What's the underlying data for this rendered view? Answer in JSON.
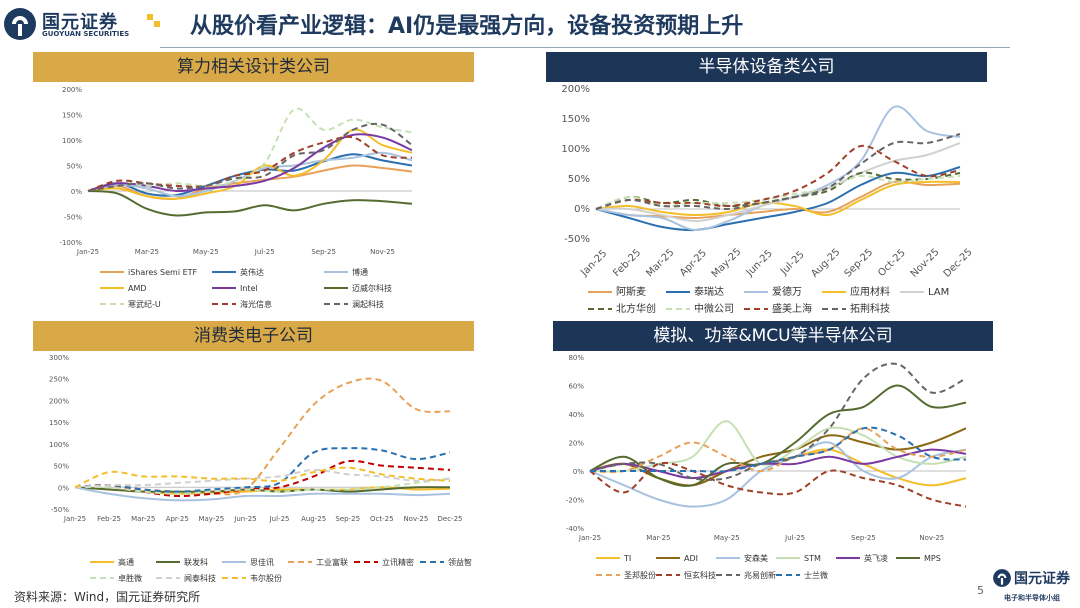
{
  "header": {
    "logo_cn": "国元证券",
    "logo_en": "GUOYUAN SECURITIES",
    "title": "从股价看产业逻辑：AI仍是最强方向，设备投资预期上升"
  },
  "footer": {
    "source": "资料来源：Wind，国元证券研究所",
    "page": "5",
    "logo_cn": "国元证券",
    "team": "电子和半导体小组"
  },
  "chart_data": [
    {
      "id": "tl",
      "type": "line",
      "title": "算力相关设计类公司",
      "x": [
        "Jan-25",
        "Feb-25",
        "Mar-25",
        "Apr-25",
        "May-25",
        "Jun-25",
        "Jul-25",
        "Aug-25",
        "Sep-25",
        "Oct-25",
        "Nov-25",
        "Dec-25"
      ],
      "x_ticks": [
        "Jan-25",
        "Mar-25",
        "May-25",
        "Jul-25",
        "Sep-25",
        "Nov-25"
      ],
      "y_ticks": [
        "-100%",
        "-50%",
        "0%",
        "50%",
        "100%",
        "150%",
        "200%"
      ],
      "ylim": [
        -100,
        200
      ],
      "series": [
        {
          "name": "iShares Semi ETF",
          "color": "#e8a15a",
          "dash": false,
          "values": [
            0,
            10,
            -10,
            -15,
            5,
            15,
            22,
            28,
            40,
            50,
            45,
            38
          ]
        },
        {
          "name": "英伟达",
          "color": "#2a6fb0",
          "dash": false,
          "values": [
            0,
            15,
            -5,
            -8,
            10,
            30,
            42,
            40,
            58,
            72,
            60,
            50
          ]
        },
        {
          "name": "博通",
          "color": "#a8c2e0",
          "dash": false,
          "values": [
            0,
            12,
            5,
            -10,
            0,
            20,
            45,
            50,
            60,
            65,
            75,
            60
          ]
        },
        {
          "name": "AMD",
          "color": "#f4be2a",
          "dash": false,
          "values": [
            0,
            5,
            -10,
            -15,
            -5,
            10,
            50,
            30,
            60,
            120,
            90,
            75
          ]
        },
        {
          "name": "Intel",
          "color": "#7b3aa3",
          "dash": false,
          "values": [
            0,
            15,
            10,
            0,
            5,
            10,
            20,
            45,
            85,
            110,
            105,
            80
          ]
        },
        {
          "name": "迈威尔科技",
          "color": "#556b2f",
          "dash": false,
          "values": [
            0,
            -5,
            -35,
            -48,
            -42,
            -40,
            -28,
            -38,
            -25,
            -18,
            -20,
            -25
          ]
        },
        {
          "name": "寒武纪-U",
          "color": "#c6e0b4",
          "dash": true,
          "values": [
            0,
            20,
            10,
            15,
            10,
            20,
            55,
            160,
            120,
            140,
            125,
            115
          ]
        },
        {
          "name": "海光信息",
          "color": "#a0402a",
          "dash": true,
          "values": [
            0,
            20,
            15,
            10,
            10,
            30,
            40,
            75,
            95,
            105,
            70,
            65
          ]
        },
        {
          "name": "澜起科技",
          "color": "#666666",
          "dash": true,
          "values": [
            0,
            10,
            15,
            5,
            10,
            25,
            30,
            70,
            80,
            120,
            130,
            90
          ]
        }
      ]
    },
    {
      "id": "tr",
      "type": "line",
      "title": "半导体设备类公司",
      "x": [
        "Jan-25",
        "Feb-25",
        "Mar-25",
        "Apr-25",
        "May-25",
        "Jun-25",
        "Jul-25",
        "Aug-25",
        "Sep-25",
        "Oct-25",
        "Nov-25",
        "Dec-25"
      ],
      "x_ticks": [
        "Jan-25",
        "Feb-25",
        "Mar-25",
        "Apr-25",
        "May-25",
        "Jun-25",
        "Jul-25",
        "Aug-25",
        "Sep-25",
        "Oct-25",
        "Nov-25",
        "Dec-25"
      ],
      "y_ticks": [
        "-50%",
        "0%",
        "50%",
        "100%",
        "150%",
        "200%"
      ],
      "ylim": [
        -50,
        200
      ],
      "series": [
        {
          "name": "阿斯麦",
          "color": "#e8a15a",
          "dash": false,
          "values": [
            0,
            -10,
            -12,
            -15,
            -10,
            -5,
            0,
            -5,
            20,
            45,
            40,
            42
          ]
        },
        {
          "name": "泰瑞达",
          "color": "#2a6fb0",
          "dash": false,
          "values": [
            0,
            -15,
            -30,
            -35,
            -25,
            -15,
            -5,
            10,
            40,
            60,
            55,
            70
          ]
        },
        {
          "name": "爱德万",
          "color": "#a8c2e0",
          "dash": false,
          "values": [
            0,
            -10,
            -15,
            -35,
            -20,
            5,
            20,
            40,
            80,
            170,
            130,
            120
          ]
        },
        {
          "name": "应用材料",
          "color": "#f4be2a",
          "dash": false,
          "values": [
            0,
            5,
            -5,
            -10,
            -5,
            10,
            5,
            -10,
            15,
            40,
            45,
            45
          ]
        },
        {
          "name": "LAM",
          "color": "#d0d0d0",
          "dash": false,
          "values": [
            0,
            0,
            -10,
            -20,
            -10,
            5,
            20,
            35,
            60,
            80,
            90,
            110
          ]
        },
        {
          "name": "北方华创",
          "color": "#556b2f",
          "dash": true,
          "values": [
            0,
            20,
            10,
            15,
            5,
            10,
            20,
            30,
            60,
            50,
            50,
            60
          ]
        },
        {
          "name": "中微公司",
          "color": "#c6e0b4",
          "dash": true,
          "values": [
            0,
            20,
            5,
            10,
            10,
            15,
            25,
            35,
            55,
            45,
            50,
            55
          ]
        },
        {
          "name": "盛美上海",
          "color": "#a0402a",
          "dash": true,
          "values": [
            0,
            15,
            10,
            10,
            5,
            15,
            30,
            60,
            105,
            80,
            55,
            65
          ]
        },
        {
          "name": "拓荆科技",
          "color": "#666666",
          "dash": true,
          "values": [
            0,
            15,
            5,
            5,
            0,
            10,
            20,
            35,
            75,
            110,
            110,
            125
          ]
        }
      ]
    },
    {
      "id": "bl",
      "type": "line",
      "title": "消费类电子公司",
      "x": [
        "Jan-25",
        "Feb-25",
        "Mar-25",
        "Apr-25",
        "May-25",
        "Jun-25",
        "Jul-25",
        "Aug-25",
        "Sep-25",
        "Oct-25",
        "Nov-25",
        "Dec-25"
      ],
      "x_ticks": [
        "Jan-25",
        "Feb-25",
        "Mar-25",
        "Apr-25",
        "May-25",
        "Jun-25",
        "Jul-25",
        "Aug-25",
        "Sep-25",
        "Oct-25",
        "Nov-25",
        "Dec-25"
      ],
      "y_ticks": [
        "-50%",
        "0%",
        "50%",
        "100%",
        "150%",
        "200%",
        "250%",
        "300%"
      ],
      "ylim": [
        -50,
        300
      ],
      "series": [
        {
          "name": "高通",
          "color": "#f4be2a",
          "dash": false,
          "values": [
            0,
            -5,
            -10,
            -15,
            -12,
            -10,
            -5,
            -5,
            -5,
            0,
            -5,
            -3
          ]
        },
        {
          "name": "联发科",
          "color": "#556b2f",
          "dash": false,
          "values": [
            0,
            -5,
            -10,
            -10,
            -10,
            -5,
            -10,
            -5,
            -10,
            -5,
            0,
            0
          ]
        },
        {
          "name": "思佳讯",
          "color": "#a8c2e0",
          "dash": false,
          "values": [
            0,
            -15,
            -25,
            -30,
            -28,
            -20,
            -20,
            -15,
            -15,
            -15,
            -18,
            -15
          ]
        },
        {
          "name": "工业富联",
          "color": "#e8a15a",
          "dash": true,
          "values": [
            0,
            5,
            -5,
            -10,
            -15,
            -5,
            90,
            190,
            240,
            245,
            180,
            175
          ]
        },
        {
          "name": "立讯精密",
          "color": "#c00000",
          "dash": true,
          "values": [
            0,
            5,
            -10,
            -20,
            -15,
            -5,
            0,
            25,
            60,
            50,
            45,
            40
          ]
        },
        {
          "name": "领益智造",
          "color": "#2a6fb0",
          "dash": true,
          "values": [
            0,
            5,
            -5,
            -10,
            -5,
            0,
            10,
            80,
            90,
            85,
            65,
            80
          ]
        },
        {
          "name": "卓胜微",
          "color": "#c6e0b4",
          "dash": true,
          "values": [
            0,
            0,
            -10,
            -15,
            -10,
            -5,
            -10,
            -5,
            -5,
            0,
            10,
            20
          ]
        },
        {
          "name": "闻泰科技",
          "color": "#d0d0d0",
          "dash": true,
          "values": [
            0,
            5,
            5,
            10,
            15,
            20,
            25,
            40,
            30,
            25,
            15,
            20
          ]
        },
        {
          "name": "韦尔股份",
          "color": "#f4be2a",
          "dash": true,
          "values": [
            0,
            35,
            25,
            25,
            20,
            20,
            15,
            35,
            45,
            30,
            20,
            15
          ]
        }
      ]
    },
    {
      "id": "br",
      "type": "line",
      "title": "模拟、功率&MCU等半导体公司",
      "x": [
        "Jan-25",
        "Feb-25",
        "Mar-25",
        "Apr-25",
        "May-25",
        "Jun-25",
        "Jul-25",
        "Aug-25",
        "Sep-25",
        "Oct-25",
        "Nov-25",
        "Dec-25"
      ],
      "x_ticks": [
        "Jan-25",
        "Mar-25",
        "May-25",
        "Jul-25",
        "Sep-25",
        "Nov-25"
      ],
      "y_ticks": [
        "-40%",
        "-20%",
        "0%",
        "20%",
        "40%",
        "60%",
        "80%"
      ],
      "ylim": [
        -40,
        80
      ],
      "series": [
        {
          "name": "TI",
          "color": "#f4be2a",
          "dash": false,
          "values": [
            0,
            5,
            -5,
            -10,
            0,
            5,
            10,
            15,
            5,
            -5,
            -10,
            -5
          ]
        },
        {
          "name": "ADI",
          "color": "#8b6914",
          "dash": false,
          "values": [
            0,
            5,
            -5,
            -10,
            0,
            10,
            15,
            25,
            20,
            15,
            20,
            30
          ]
        },
        {
          "name": "安森美",
          "color": "#a8c2e0",
          "dash": false,
          "values": [
            0,
            -10,
            -20,
            -25,
            -20,
            0,
            10,
            20,
            0,
            -5,
            10,
            15
          ]
        },
        {
          "name": "STM",
          "color": "#c6e0b4",
          "dash": false,
          "values": [
            0,
            0,
            5,
            10,
            35,
            5,
            15,
            30,
            25,
            10,
            5,
            10
          ]
        },
        {
          "name": "英飞凌",
          "color": "#7b3aa3",
          "dash": false,
          "values": [
            0,
            5,
            0,
            -5,
            0,
            5,
            5,
            10,
            5,
            10,
            15,
            12
          ]
        },
        {
          "name": "MPS",
          "color": "#556b2f",
          "dash": false,
          "values": [
            0,
            10,
            -5,
            -10,
            5,
            5,
            20,
            40,
            45,
            60,
            45,
            48
          ]
        },
        {
          "name": "圣邦股份",
          "color": "#e8a15a",
          "dash": true,
          "values": [
            0,
            0,
            10,
            20,
            10,
            0,
            10,
            15,
            30,
            15,
            10,
            15
          ]
        },
        {
          "name": "恒玄科技",
          "color": "#a0402a",
          "dash": true,
          "values": [
            0,
            -15,
            5,
            0,
            -10,
            -15,
            -15,
            0,
            -5,
            -10,
            -20,
            -25
          ]
        },
        {
          "name": "兆易创新",
          "color": "#666666",
          "dash": true,
          "values": [
            0,
            5,
            5,
            -5,
            -5,
            5,
            10,
            30,
            65,
            75,
            55,
            65
          ]
        },
        {
          "name": "士兰微",
          "color": "#2a6fb0",
          "dash": true,
          "values": [
            0,
            0,
            0,
            0,
            0,
            5,
            10,
            15,
            30,
            25,
            10,
            8
          ]
        }
      ]
    }
  ]
}
